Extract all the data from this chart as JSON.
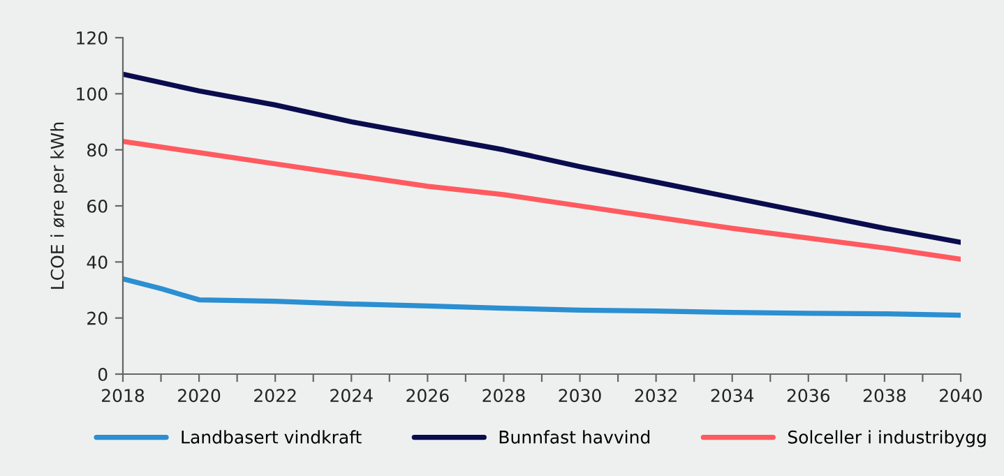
{
  "chart_data": {
    "type": "line",
    "ylabel": "LCOE i øre per kWh",
    "x": [
      2018,
      2019,
      2020,
      2022,
      2024,
      2026,
      2028,
      2030,
      2032,
      2034,
      2036,
      2038,
      2040
    ],
    "series": [
      {
        "name": "Landbasert vindkraft",
        "color": "#2b8fd1",
        "values": [
          34,
          30.5,
          26.5,
          26,
          25,
          24.3,
          23.5,
          22.8,
          22.5,
          22,
          21.7,
          21.5,
          21
        ]
      },
      {
        "name": "Bunnfast havvind",
        "color": "#0a0c4e",
        "values": [
          107,
          104,
          101,
          96,
          90,
          85,
          80,
          74,
          68.5,
          63,
          57.5,
          52,
          47
        ]
      },
      {
        "name": "Solceller i industribygg",
        "color": "#ff5a5f",
        "values": [
          83,
          81,
          79,
          75,
          71,
          67,
          64,
          60,
          56,
          52,
          48.5,
          45,
          41
        ]
      }
    ],
    "xlim": [
      2018,
      2040
    ],
    "ylim": [
      0,
      120
    ],
    "xticks": [
      2018,
      {
        "value": 2019,
        "label": null
      },
      2020,
      {
        "value": 2021,
        "label": null
      },
      2022,
      {
        "value": 2023,
        "label": null
      },
      2024,
      {
        "value": 2025,
        "label": null
      },
      2026,
      {
        "value": 2027,
        "label": null
      },
      2028,
      {
        "value": 2029,
        "label": null
      },
      2030,
      {
        "value": 2031,
        "label": null
      },
      2032,
      {
        "value": 2033,
        "label": null
      },
      2034,
      {
        "value": 2035,
        "label": null
      },
      2036,
      {
        "value": 2037,
        "label": null
      },
      2038,
      {
        "value": 2039,
        "label": null
      },
      2040
    ],
    "yticks": [
      0,
      20,
      40,
      60,
      80,
      100,
      120
    ],
    "grid": false,
    "legend": "bottom",
    "marker": "none",
    "line_style": "solid"
  }
}
